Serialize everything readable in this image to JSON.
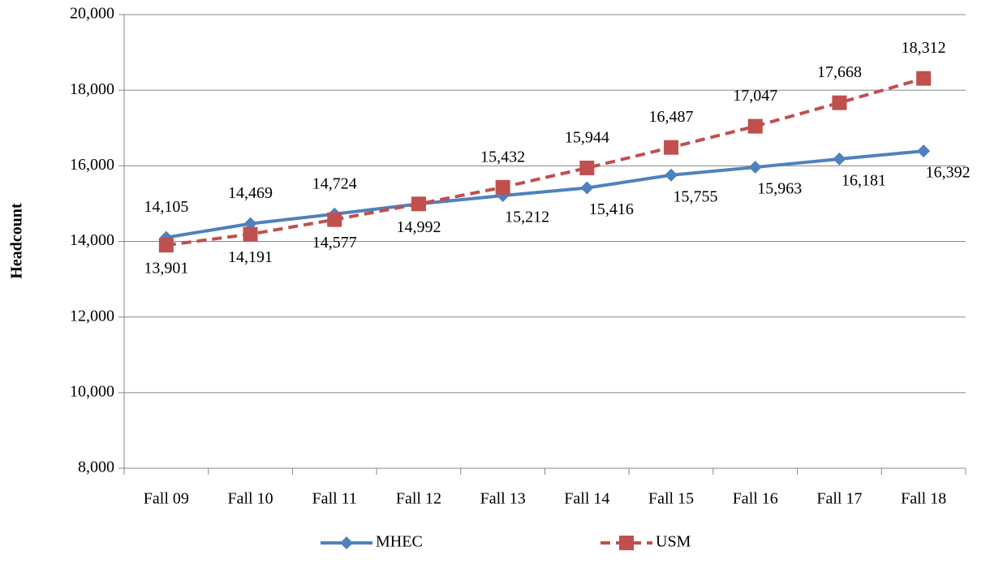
{
  "chart_data": {
    "type": "line",
    "y_label": "Headcount",
    "categories": [
      "Fall 09",
      "Fall 10",
      "Fall 11",
      "Fall 12",
      "Fall 13",
      "Fall 14",
      "Fall 15",
      "Fall 16",
      "Fall 17",
      "Fall 18"
    ],
    "series": [
      {
        "name": "MHEC",
        "color": "#4f81bd",
        "marker": "diamond",
        "dashed": false,
        "values": [
          14105,
          14469,
          14724,
          14992,
          15212,
          15416,
          15755,
          15963,
          16181,
          16392
        ],
        "value_labels": [
          "14,105",
          "14,469",
          "14,724",
          null,
          "15,212",
          "15,416",
          "15,755",
          "15,963",
          "16,181",
          "16,392"
        ]
      },
      {
        "name": "USM",
        "color": "#c0504d",
        "marker": "square",
        "dashed": true,
        "values": [
          13901,
          14191,
          14577,
          14992,
          15432,
          15944,
          16487,
          17047,
          17668,
          18312
        ],
        "value_labels": [
          "13,901",
          "14,191",
          "14,577",
          "14,992",
          "15,432",
          "15,944",
          "16,487",
          "17,047",
          "17,668",
          "18,312"
        ]
      }
    ],
    "ylim": [
      8000,
      20000
    ],
    "yticks": [
      {
        "value": 8000,
        "label": "8,000"
      },
      {
        "value": 10000,
        "label": "10,000"
      },
      {
        "value": 12000,
        "label": "12,000"
      },
      {
        "value": 14000,
        "label": "14,000"
      },
      {
        "value": 16000,
        "label": "16,000"
      },
      {
        "value": 18000,
        "label": "18,000"
      },
      {
        "value": 20000,
        "label": "20,000"
      }
    ],
    "grid": true
  }
}
